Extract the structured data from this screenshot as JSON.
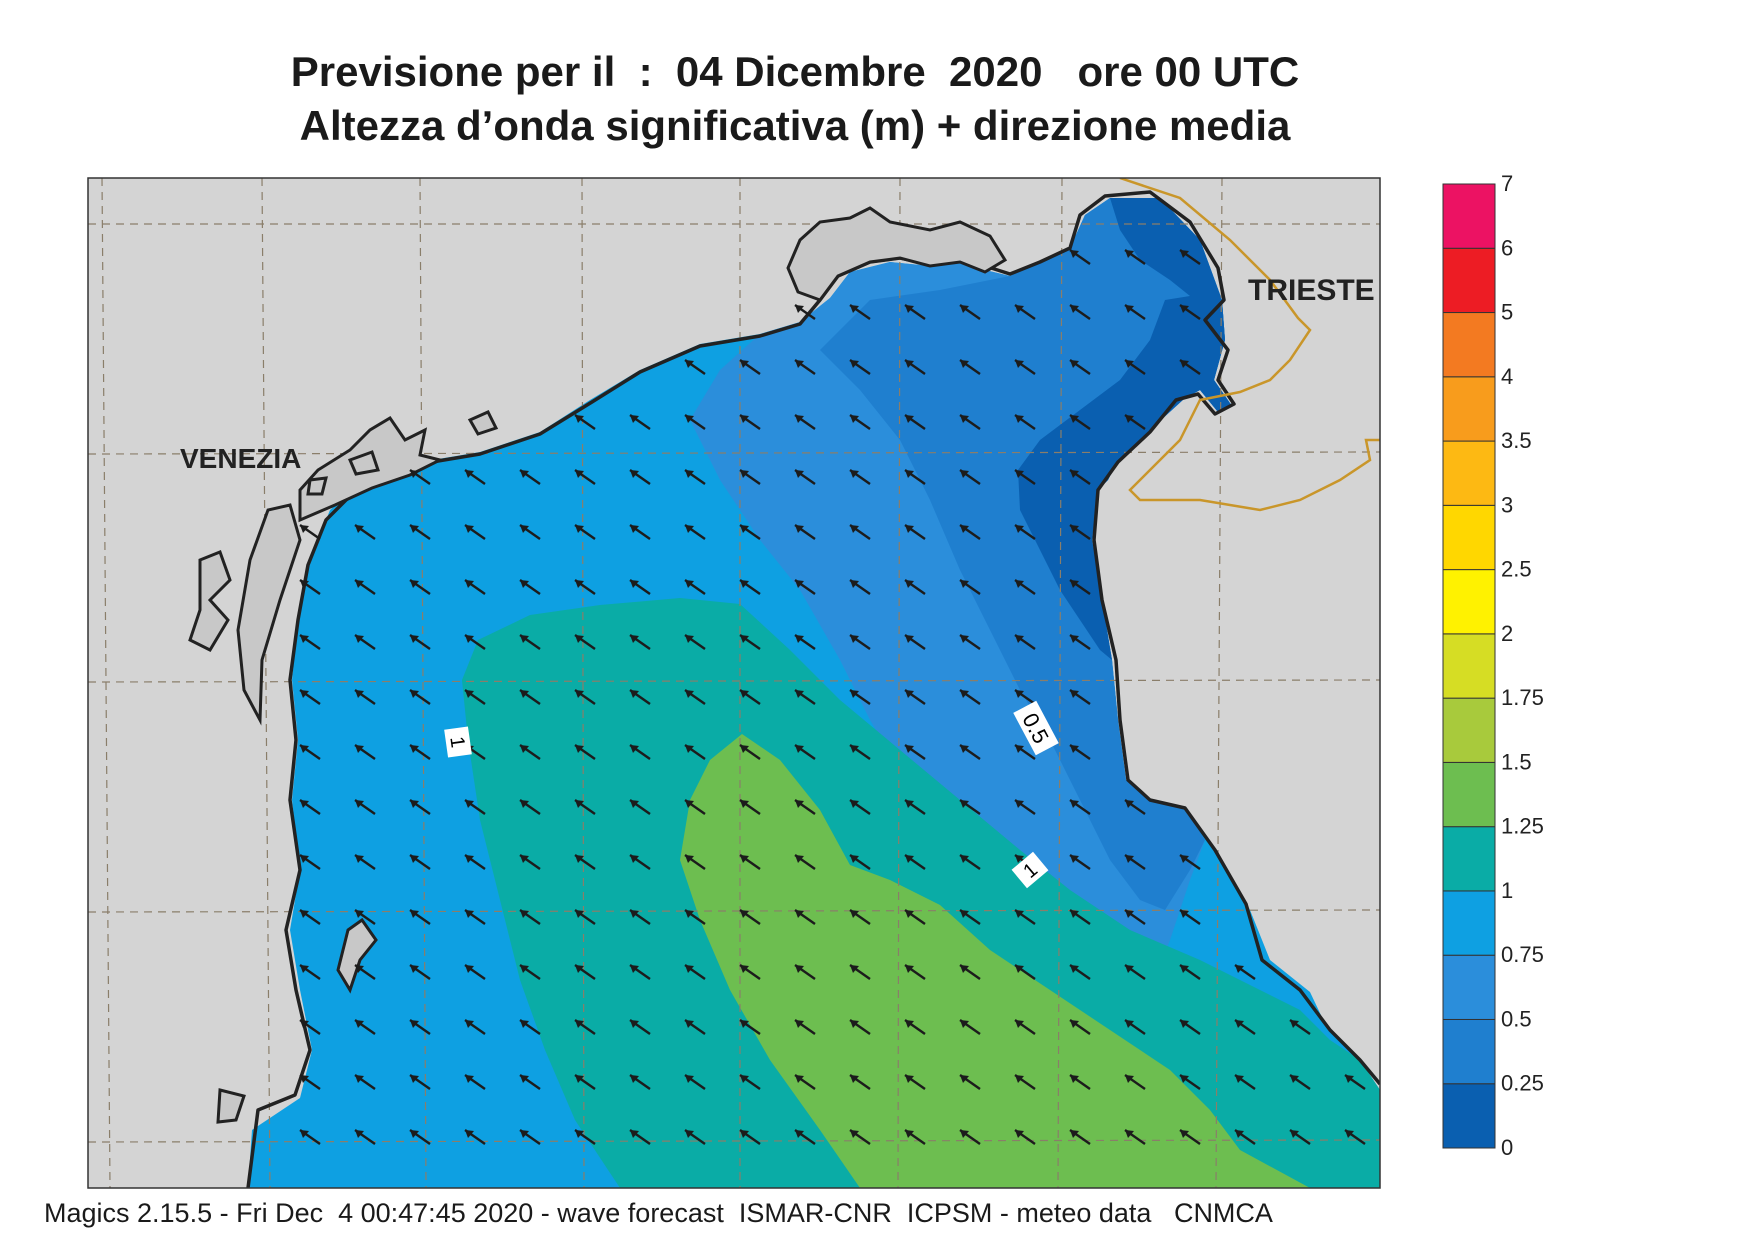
{
  "title_line1": "Previsione per il  :  04 Dicembre  2020   ore 00 UTC",
  "title_line2": "Altezza d’onda significativa (m) + direzione media",
  "footer": "Magics 2.15.5 - Fri Dec  4 00:47:45 2020 - wave forecast  ISMAR-CNR  ICPSM - meteo data   CNMCA",
  "places": {
    "venezia": "VENEZIA",
    "trieste": "TRIESTE"
  },
  "contour_labels": {
    "a": "1",
    "b": "0.5",
    "c": "1"
  },
  "mean_direction": "towards north-west",
  "legend": {
    "unit": "m",
    "levels": [
      {
        "label": "0",
        "color": "#0a5fb0"
      },
      {
        "label": "0.25",
        "color": "#1f7fcf"
      },
      {
        "label": "0.5",
        "color": "#2b8edb"
      },
      {
        "label": "0.75",
        "color": "#0ea0e2"
      },
      {
        "label": "1",
        "color": "#0aaca6"
      },
      {
        "label": "1.25",
        "color": "#6dbe50"
      },
      {
        "label": "1.5",
        "color": "#a8ca3c"
      },
      {
        "label": "1.75",
        "color": "#d6dd24"
      },
      {
        "label": "2",
        "color": "#fff200"
      },
      {
        "label": "2.5",
        "color": "#ffd700"
      },
      {
        "label": "3",
        "color": "#fdb913"
      },
      {
        "label": "3.5",
        "color": "#f89c1c"
      },
      {
        "label": "4",
        "color": "#f37a21"
      },
      {
        "label": "5",
        "color": "#ed1c24"
      },
      {
        "label": "6",
        "color": "#ec1263"
      },
      {
        "label": "7",
        "color": ""
      }
    ]
  },
  "colors": {
    "land": "#d4d4d4",
    "coast": "#222222",
    "border": "#c9962a",
    "grid": "#8a7e6a",
    "arrow": "#1c1c1c"
  }
}
